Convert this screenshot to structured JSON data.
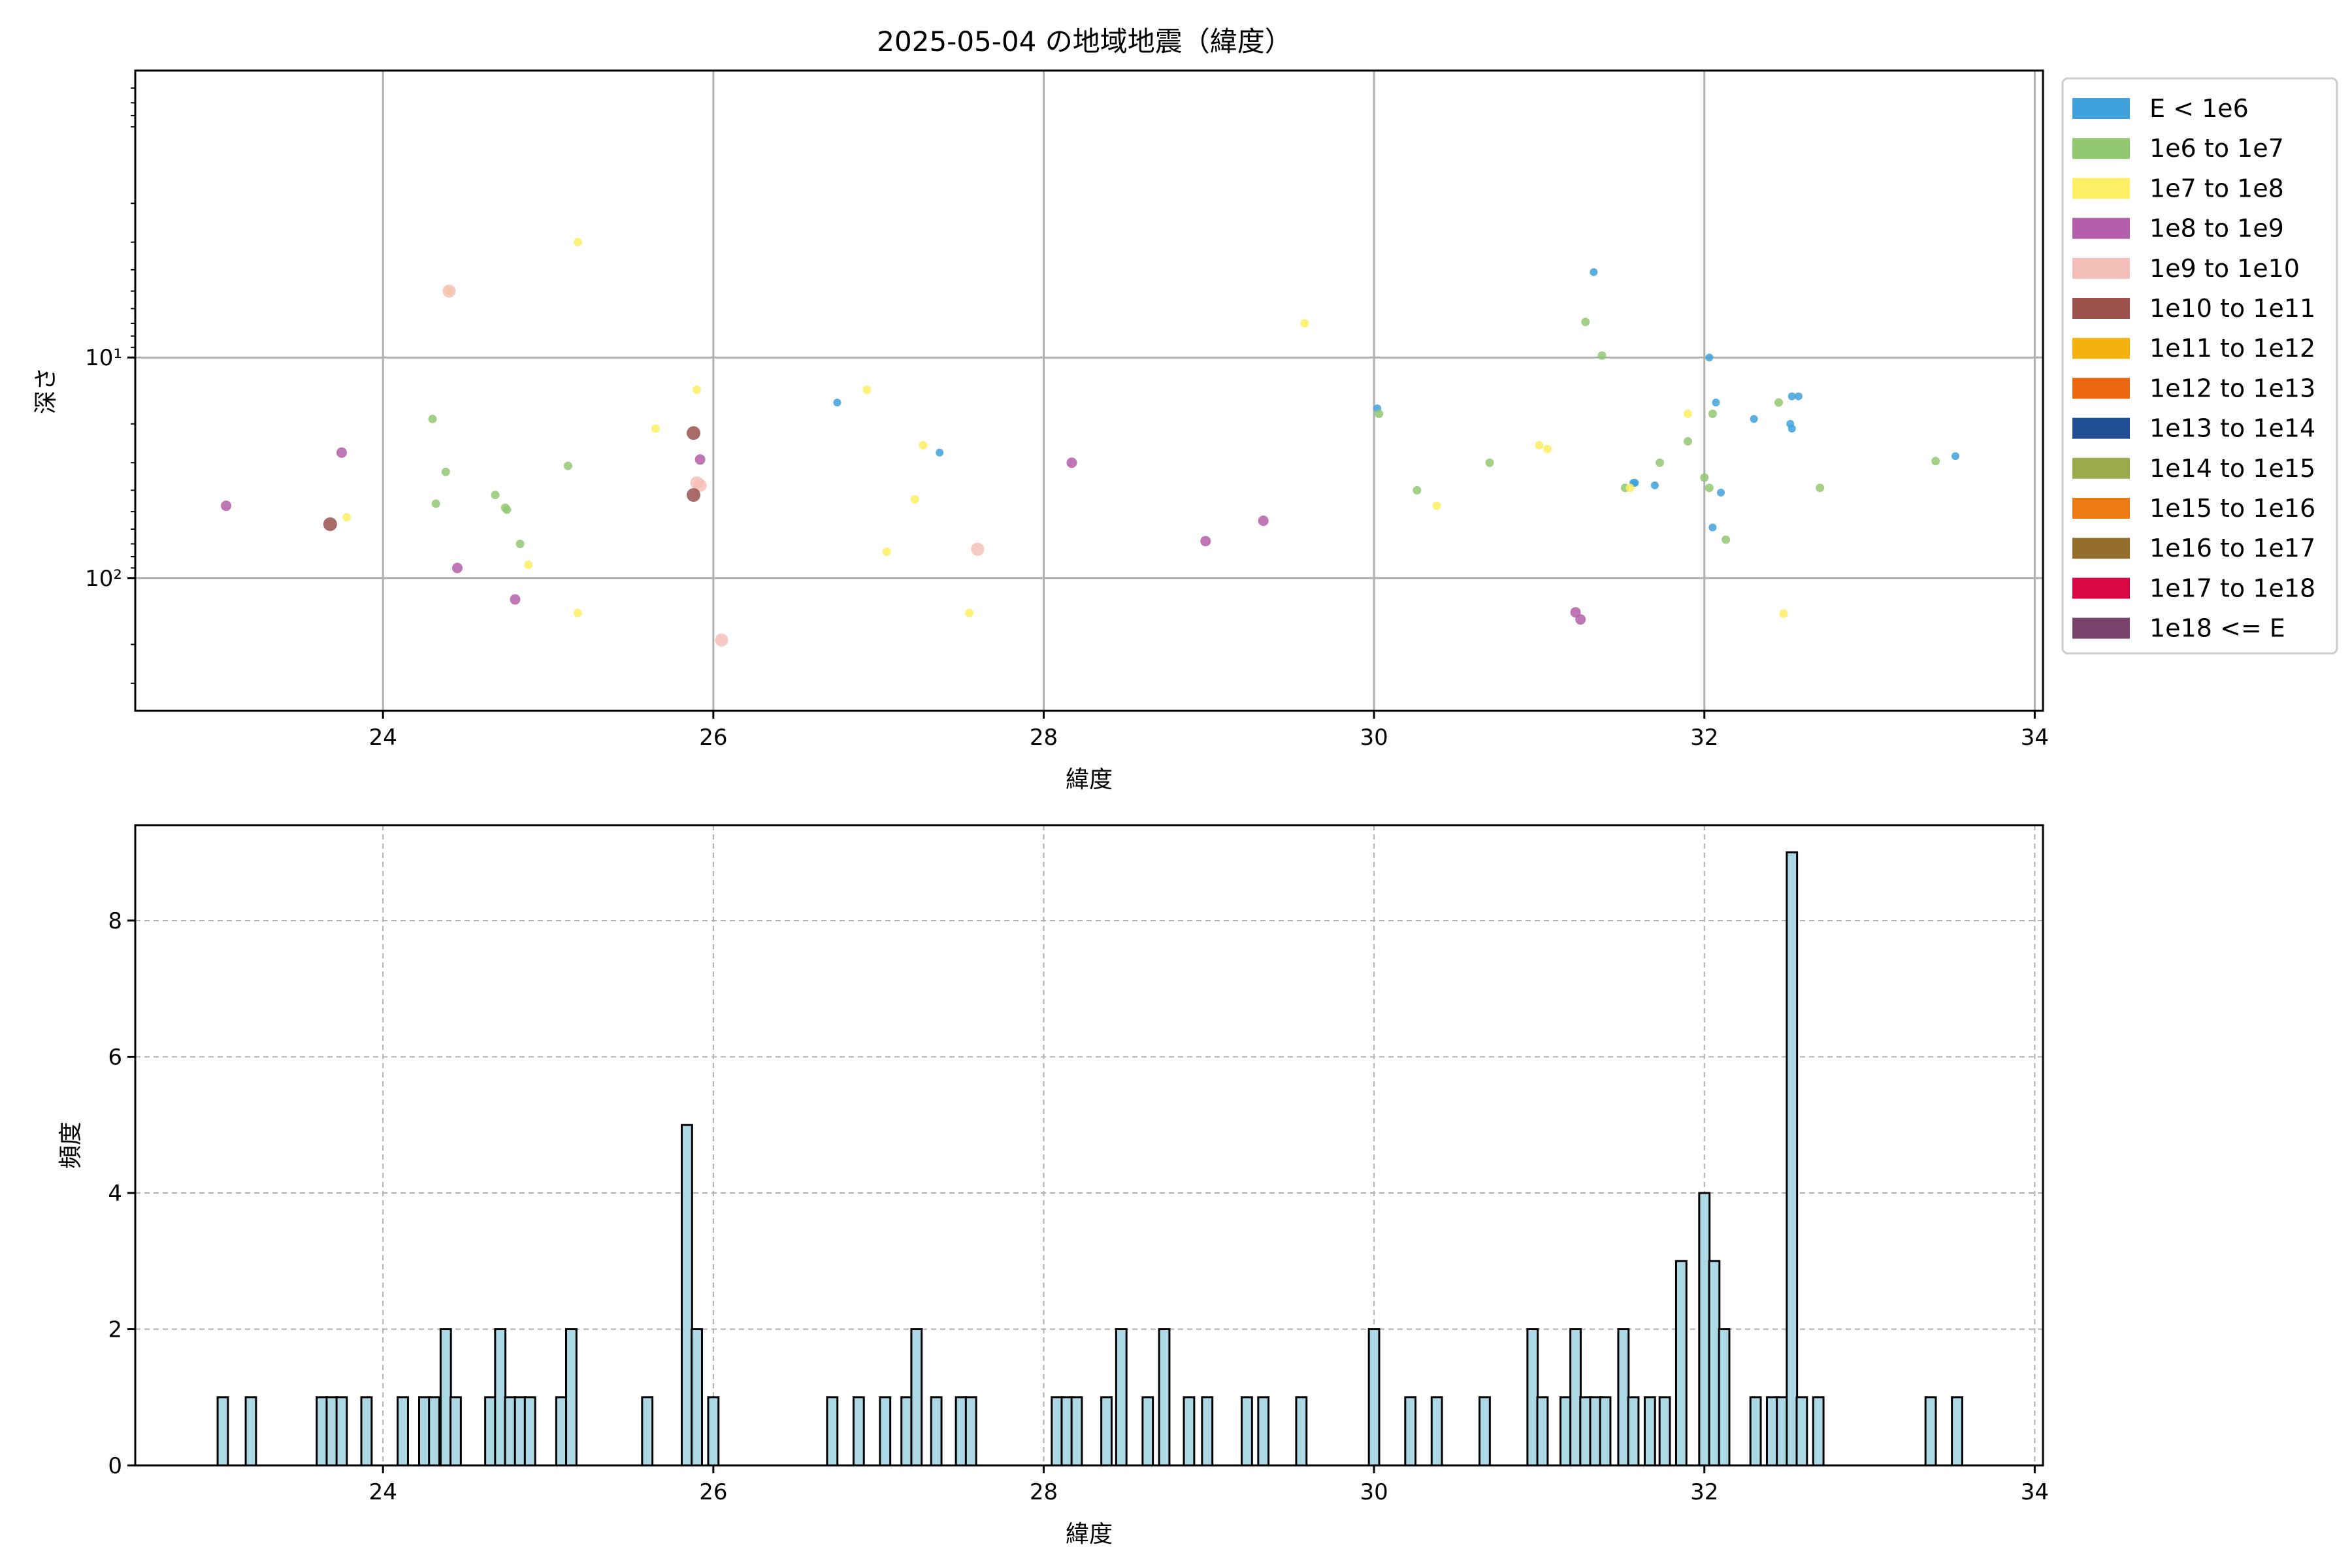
{
  "title": "2025-05-04 の地域地震（緯度）",
  "chart_data": [
    {
      "type": "scatter",
      "xlabel": "緯度",
      "ylabel": "深さ",
      "xlim": [
        22.5,
        34.05
      ],
      "ylim": [
        400,
        0.5
      ],
      "y_scale": "log",
      "y_inverted": true,
      "x_ticks": [
        24,
        26,
        28,
        30,
        32,
        34
      ],
      "y_ticks": [
        {
          "value": 10,
          "label": "10¹"
        },
        {
          "value": 100,
          "label": "10²"
        }
      ],
      "grid": true,
      "legend": "outside-right",
      "legend_entries": [
        {
          "label": "E < 1e6",
          "color": "#3fa2dc"
        },
        {
          "label": "1e6 to 1e7",
          "color": "#92c872"
        },
        {
          "label": "1e7 to 1e8",
          "color": "#fdee63"
        },
        {
          "label": "1e8 to 1e9",
          "color": "#b35ea8"
        },
        {
          "label": "1e9 to 1e10",
          "color": "#f5bfb9"
        },
        {
          "label": "1e10 to 1e11",
          "color": "#9a514c"
        },
        {
          "label": "1e11 to 1e12",
          "color": "#f5b20f"
        },
        {
          "label": "1e12 to 1e13",
          "color": "#ec6711"
        },
        {
          "label": "1e13 to 1e14",
          "color": "#1f4f92"
        },
        {
          "label": "1e14 to 1e15",
          "color": "#9aab4e"
        },
        {
          "label": "1e15 to 1e16",
          "color": "#ed7a12"
        },
        {
          "label": "1e16 to 1e17",
          "color": "#956d2c"
        },
        {
          "label": "1e17 to 1e18",
          "color": "#da0745"
        },
        {
          "label": "1e18 <= E",
          "color": "#77426b"
        }
      ],
      "series": [
        {
          "class": 0,
          "points": [
            [
              31.33,
              4.1
            ],
            [
              26.75,
              16
            ],
            [
              27.37,
              27
            ],
            [
              30.02,
              17
            ],
            [
              32.03,
              10
            ],
            [
              32.07,
              16
            ],
            [
              32.3,
              19
            ],
            [
              32.52,
              20
            ],
            [
              32.53,
              15
            ],
            [
              32.57,
              15
            ],
            [
              32.53,
              21
            ],
            [
              31.57,
              37
            ],
            [
              31.58,
              37
            ],
            [
              31.7,
              38
            ],
            [
              32.1,
              41
            ],
            [
              32.05,
              59
            ],
            [
              33.52,
              28
            ]
          ]
        },
        {
          "class": 1,
          "points": [
            [
              24.3,
              19
            ],
            [
              24.38,
              33
            ],
            [
              24.32,
              46
            ],
            [
              24.68,
              42
            ],
            [
              24.74,
              48
            ],
            [
              24.75,
              49
            ],
            [
              24.83,
              70
            ],
            [
              25.12,
              31
            ],
            [
              30.03,
              18
            ],
            [
              30.26,
              40
            ],
            [
              30.7,
              30
            ],
            [
              31.28,
              6.9
            ],
            [
              31.38,
              9.8
            ],
            [
              31.52,
              39
            ],
            [
              31.73,
              30
            ],
            [
              31.9,
              24
            ],
            [
              32.0,
              35
            ],
            [
              32.03,
              39
            ],
            [
              32.05,
              18
            ],
            [
              32.13,
              67
            ],
            [
              32.45,
              16
            ],
            [
              32.7,
              39
            ],
            [
              33.4,
              29.5
            ]
          ]
        },
        {
          "class": 2,
          "points": [
            [
              25.18,
              3
            ],
            [
              24.4,
              5
            ],
            [
              23.78,
              53
            ],
            [
              24.88,
              87
            ],
            [
              25.18,
              144
            ],
            [
              25.65,
              21
            ],
            [
              25.9,
              14
            ],
            [
              26.93,
              14
            ],
            [
              27.27,
              25
            ],
            [
              27.22,
              44
            ],
            [
              27.05,
              76
            ],
            [
              27.55,
              144
            ],
            [
              29.58,
              7
            ],
            [
              30.38,
              47
            ],
            [
              31.0,
              25
            ],
            [
              31.05,
              26
            ],
            [
              31.55,
              39
            ],
            [
              31.9,
              18
            ],
            [
              32.48,
              145
            ]
          ]
        },
        {
          "class": 3,
          "points": [
            [
              23.05,
              47
            ],
            [
              23.75,
              27
            ],
            [
              24.45,
              90
            ],
            [
              24.8,
              125
            ],
            [
              25.92,
              29
            ],
            [
              28.17,
              30
            ],
            [
              28.98,
              68
            ],
            [
              29.33,
              55
            ],
            [
              31.22,
              143
            ],
            [
              31.25,
              154
            ]
          ]
        },
        {
          "class": 4,
          "points": [
            [
              24.4,
              5
            ],
            [
              25.9,
              37
            ],
            [
              25.92,
              38
            ],
            [
              26.05,
              191
            ],
            [
              27.6,
              74
            ]
          ]
        },
        {
          "class": 5,
          "points": [
            [
              23.68,
              57
            ],
            [
              25.88,
              22
            ],
            [
              25.88,
              42
            ]
          ]
        }
      ]
    },
    {
      "type": "bar",
      "xlabel": "緯度",
      "ylabel": "頻度",
      "xlim": [
        22.5,
        34.05
      ],
      "ylim": [
        0,
        9.4
      ],
      "x_ticks": [
        24,
        26,
        28,
        30,
        32,
        34
      ],
      "y_ticks": [
        0,
        2,
        4,
        6,
        8
      ],
      "grid": true,
      "bar_color": "#add8e6",
      "bin_width": 0.0625,
      "bins": [
        [
          23.03,
          1
        ],
        [
          23.2,
          1
        ],
        [
          23.63,
          1
        ],
        [
          23.69,
          1
        ],
        [
          23.75,
          1
        ],
        [
          23.9,
          1
        ],
        [
          24.12,
          1
        ],
        [
          24.25,
          1
        ],
        [
          24.31,
          1
        ],
        [
          24.38,
          2
        ],
        [
          24.44,
          1
        ],
        [
          24.65,
          1
        ],
        [
          24.71,
          2
        ],
        [
          24.77,
          1
        ],
        [
          24.83,
          1
        ],
        [
          24.89,
          1
        ],
        [
          25.08,
          1
        ],
        [
          25.14,
          2
        ],
        [
          25.6,
          1
        ],
        [
          25.84,
          5
        ],
        [
          25.9,
          2
        ],
        [
          26.0,
          1
        ],
        [
          26.72,
          1
        ],
        [
          26.88,
          1
        ],
        [
          27.04,
          1
        ],
        [
          27.17,
          1
        ],
        [
          27.23,
          2
        ],
        [
          27.35,
          1
        ],
        [
          27.5,
          1
        ],
        [
          27.56,
          1
        ],
        [
          28.08,
          1
        ],
        [
          28.14,
          1
        ],
        [
          28.2,
          1
        ],
        [
          28.38,
          1
        ],
        [
          28.47,
          2
        ],
        [
          28.63,
          1
        ],
        [
          28.73,
          2
        ],
        [
          28.88,
          1
        ],
        [
          28.99,
          1
        ],
        [
          29.23,
          1
        ],
        [
          29.33,
          1
        ],
        [
          29.56,
          1
        ],
        [
          30.0,
          2
        ],
        [
          30.22,
          1
        ],
        [
          30.38,
          1
        ],
        [
          30.67,
          1
        ],
        [
          30.96,
          2
        ],
        [
          31.02,
          1
        ],
        [
          31.16,
          1
        ],
        [
          31.22,
          2
        ],
        [
          31.28,
          1
        ],
        [
          31.34,
          1
        ],
        [
          31.4,
          1
        ],
        [
          31.51,
          2
        ],
        [
          31.57,
          1
        ],
        [
          31.67,
          1
        ],
        [
          31.76,
          1
        ],
        [
          31.86,
          3
        ],
        [
          32.0,
          4
        ],
        [
          32.06,
          3
        ],
        [
          32.12,
          2
        ],
        [
          32.31,
          1
        ],
        [
          32.41,
          1
        ],
        [
          32.47,
          1
        ],
        [
          32.53,
          9
        ],
        [
          32.59,
          1
        ],
        [
          32.69,
          1
        ],
        [
          33.37,
          1
        ],
        [
          33.53,
          1
        ]
      ]
    }
  ]
}
